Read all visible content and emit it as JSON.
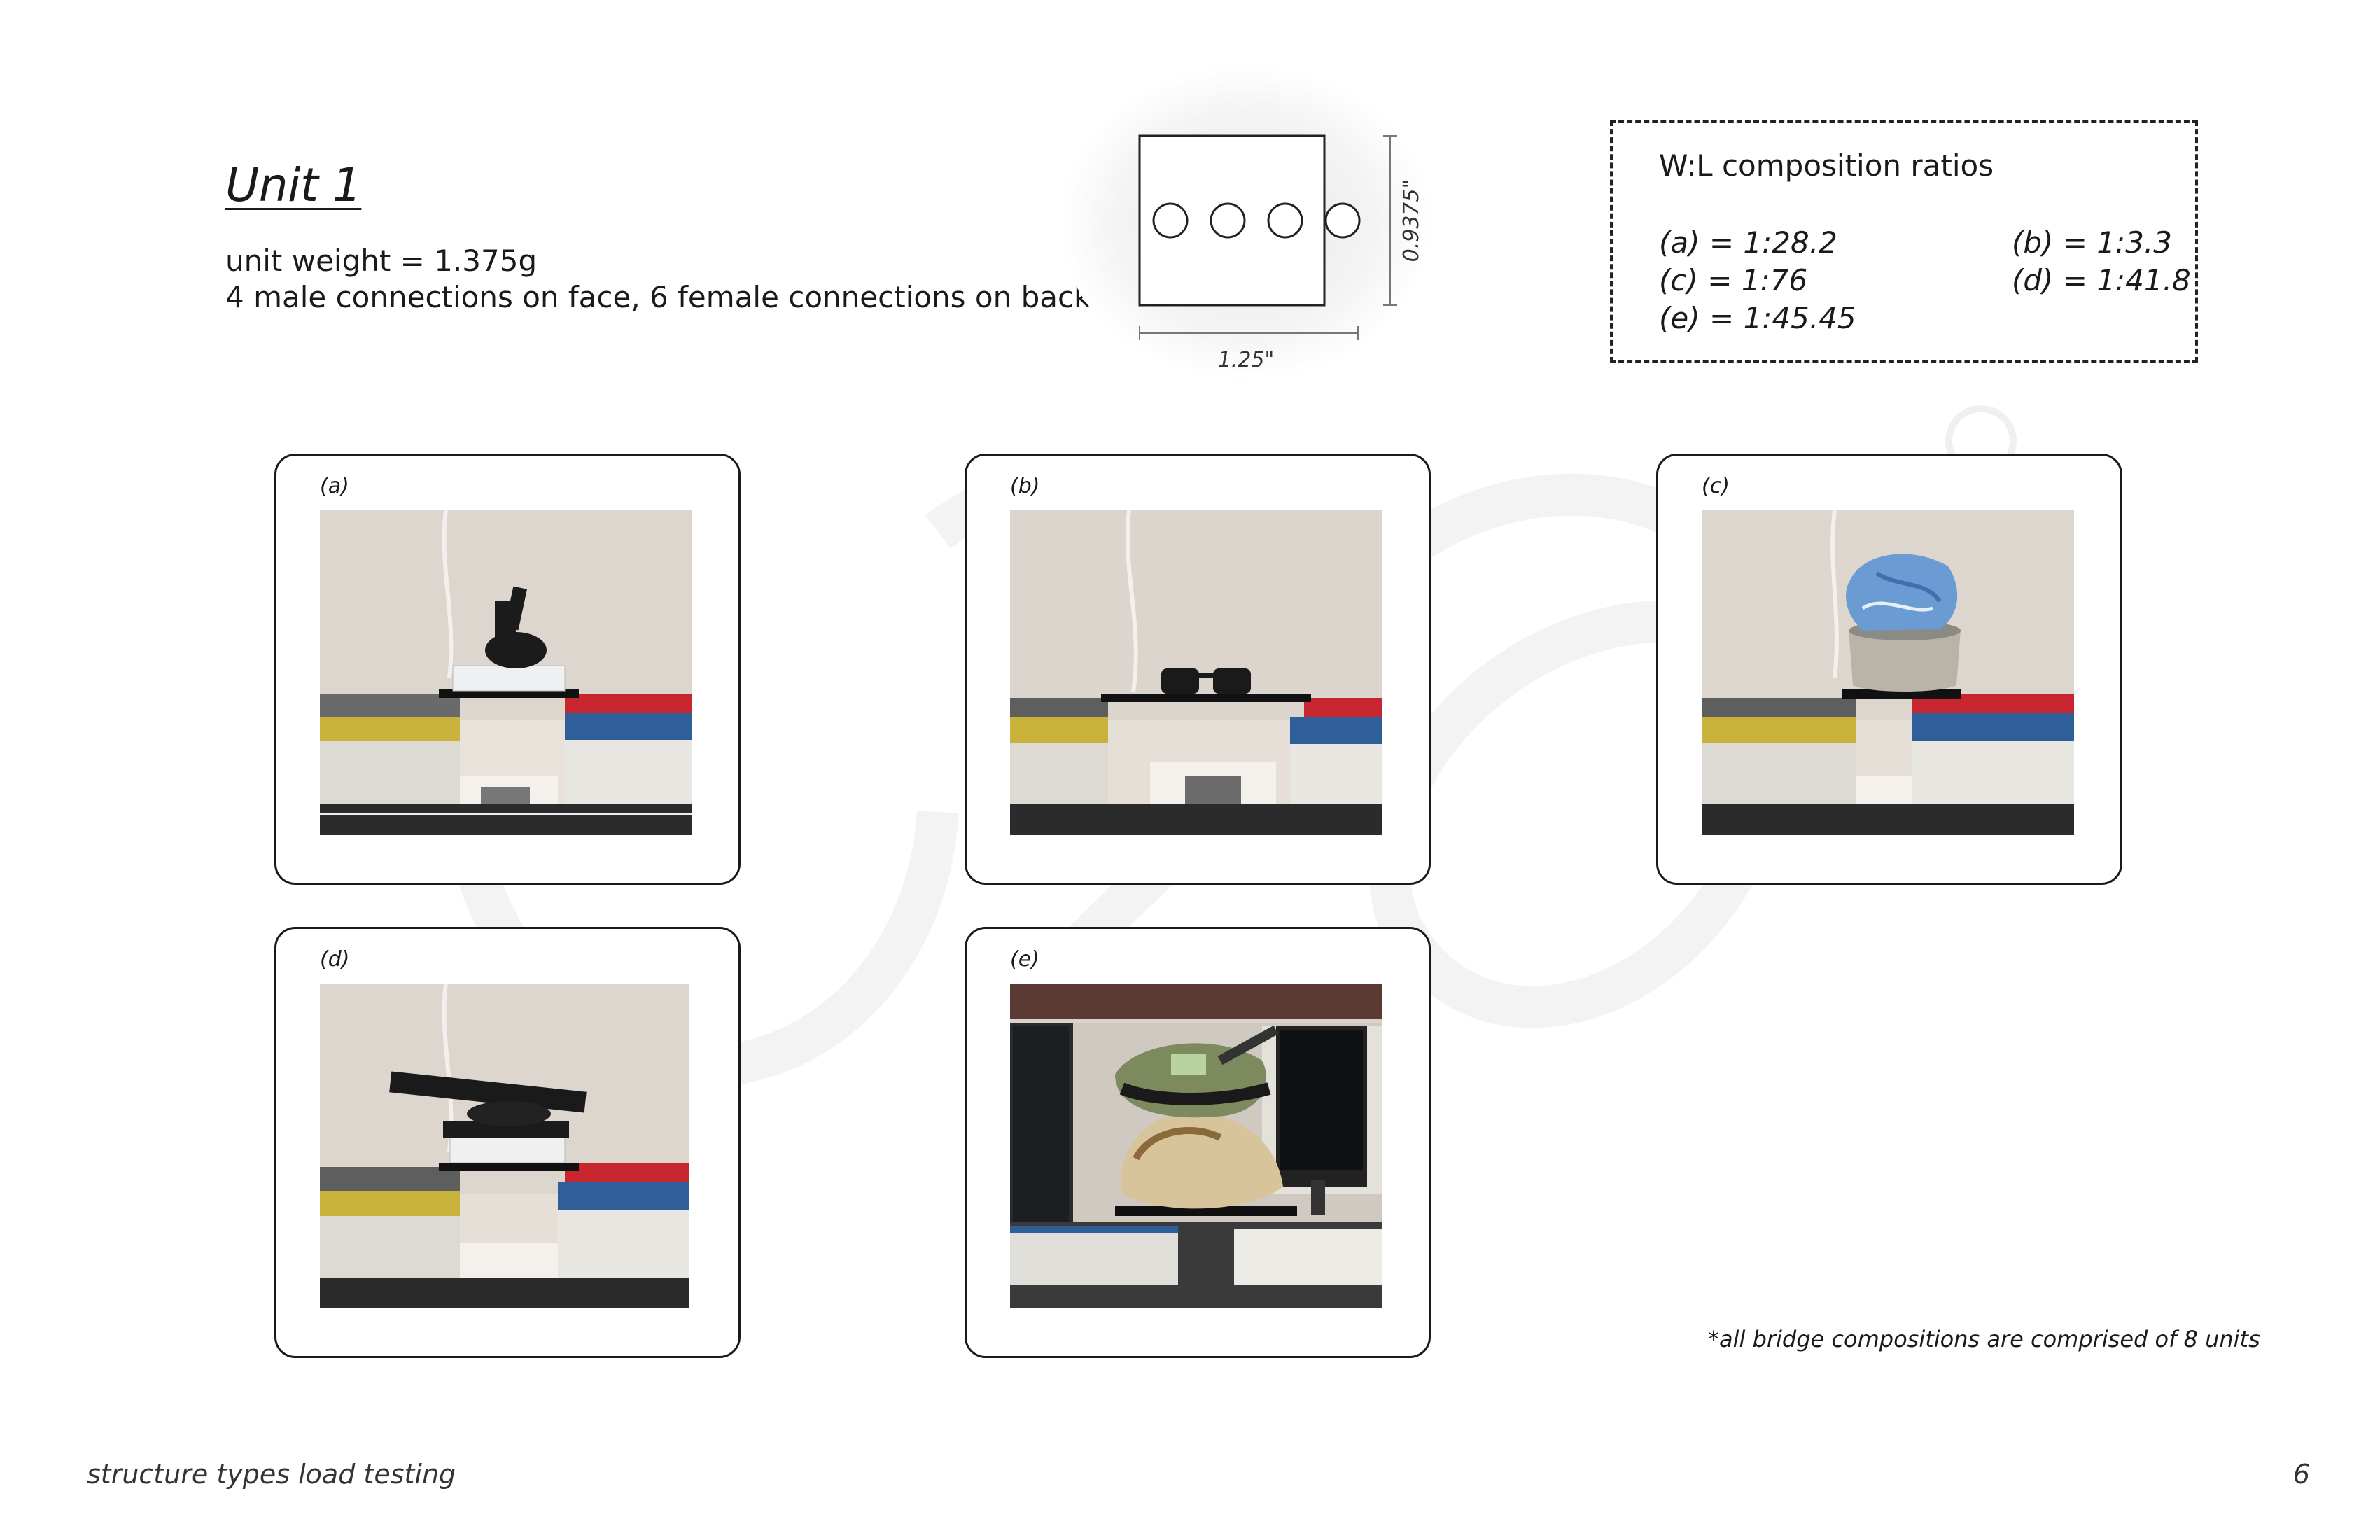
{
  "unit": {
    "title": "Unit 1",
    "weight": "unit weight = 1.375g",
    "connections": "4 male connections on face, 6 female connections on back"
  },
  "diagram": {
    "height_label": "0.9375\"",
    "width_label": "1.25\""
  },
  "ratios": {
    "title": "W:L composition ratios",
    "items": [
      {
        "id": "a",
        "text": "(a) = 1:28.2"
      },
      {
        "id": "b",
        "text": "(b) = 1:3.3"
      },
      {
        "id": "c",
        "text": "(c) = 1:76"
      },
      {
        "id": "d",
        "text": "(d) = 1:41.8"
      },
      {
        "id": "e",
        "text": "(e) = 1:45.45"
      }
    ]
  },
  "photos": [
    {
      "label": "(a)",
      "load": "figurine and wrapped package on bridge"
    },
    {
      "label": "(b)",
      "load": "sunglasses on bridge"
    },
    {
      "label": "(c)",
      "load": "ceramic bowl with blue cloth on bridge"
    },
    {
      "label": "(d)",
      "load": "stacked objects with black bar on bridge"
    },
    {
      "label": "(e)",
      "load": "pile of snacks and objects on bridge between monitors"
    }
  ],
  "footnote": "*all bridge compositions are comprised of 8 units",
  "footer": {
    "title": "structure types load testing",
    "page_number": "6"
  },
  "colors": {
    "wall": "#d9d3cc",
    "book_red": "#c8262e",
    "book_yellow": "#c9b23a",
    "book_blue": "#2f5f98",
    "cloth_blue": "#6a9bd2",
    "mat": "#2b2b2b"
  }
}
